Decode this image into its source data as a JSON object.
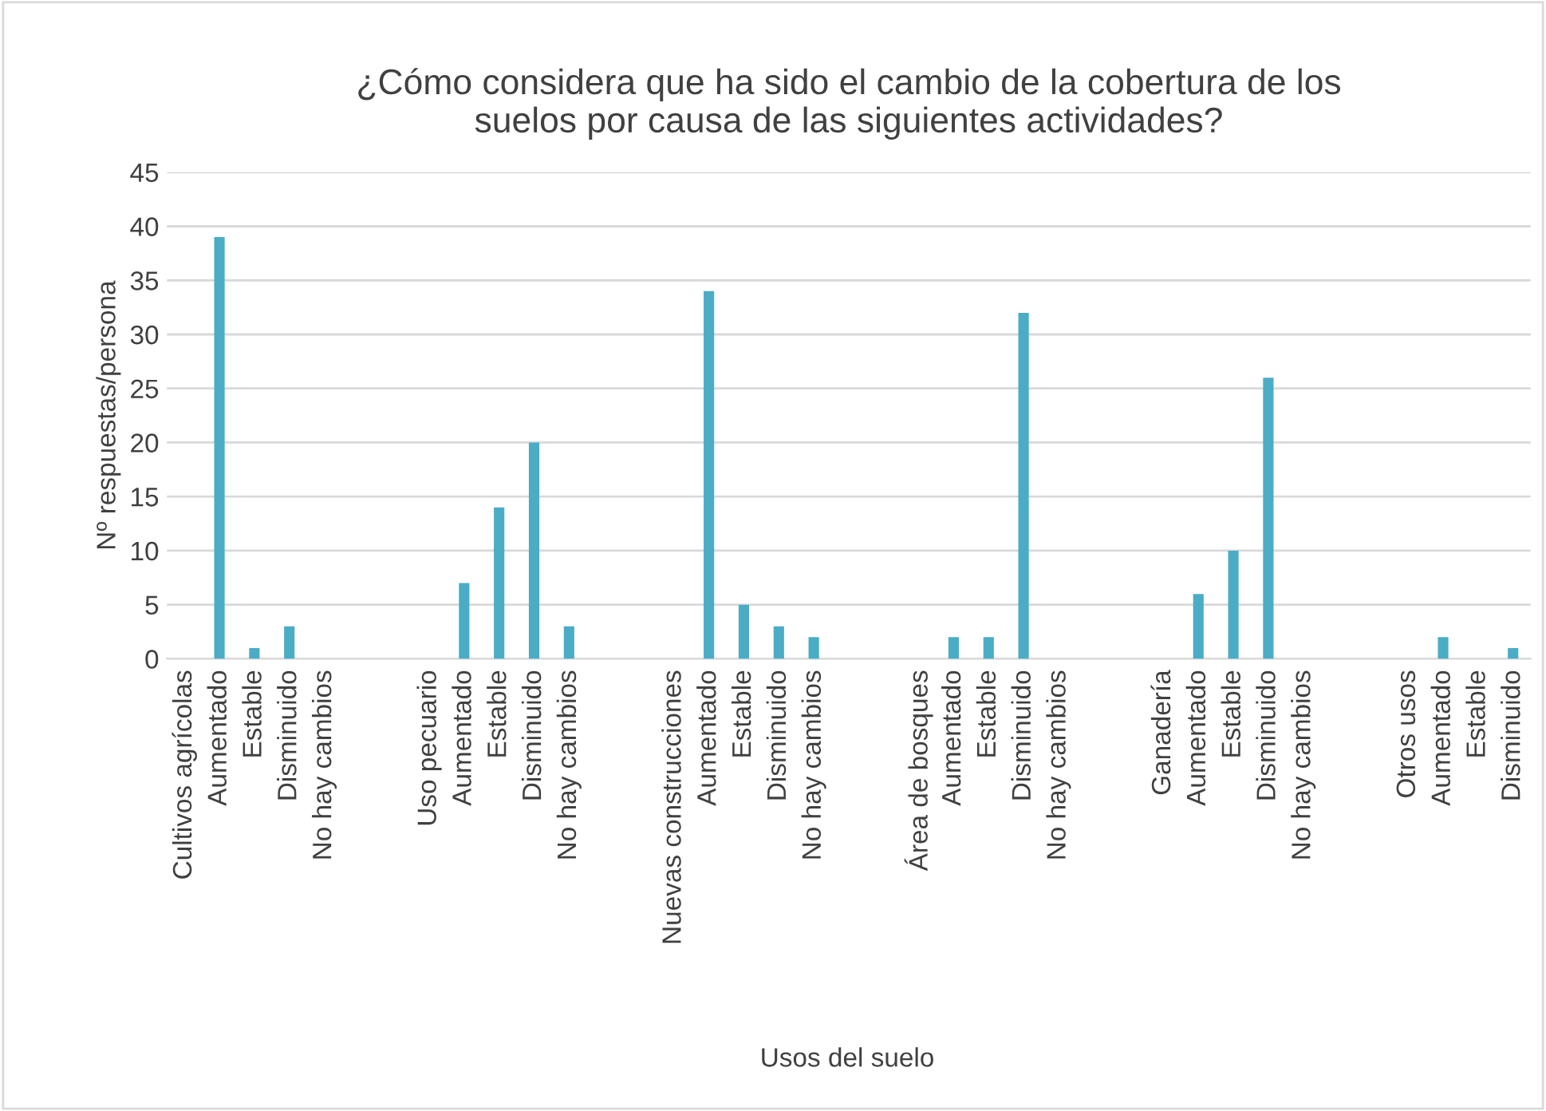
{
  "chart_data": {
    "type": "bar",
    "title": "¿Cómo considera que ha sido el cambio de la cobertura de los\nsuelos por causa de las siguientes actividades?",
    "xlabel": "Usos del suelo",
    "ylabel": "Nº respuestas/persona",
    "categories": [
      "Cultivos agrícolas",
      "Aumentado",
      "Estable",
      "Disminuido",
      "No hay cambios",
      null,
      null,
      "Uso pecuario",
      "Aumentado",
      "Estable",
      "Disminuido",
      "No hay cambios",
      null,
      null,
      "Nuevas construcciones",
      "Aumentado",
      "Estable",
      "Disminuido",
      "No hay cambios",
      null,
      null,
      "Área de bosques",
      "Aumentado",
      "Estable",
      "Disminuido",
      "No hay cambios",
      null,
      null,
      "Ganadería",
      "Aumentado",
      "Estable",
      "Disminuido",
      "No hay cambios",
      null,
      null,
      "Otros usos",
      "Aumentado",
      "Estable",
      "Disminuido"
    ],
    "values": [
      null,
      39,
      1,
      3,
      null,
      null,
      null,
      null,
      7,
      14,
      20,
      3,
      null,
      null,
      null,
      34,
      5,
      3,
      2,
      null,
      null,
      null,
      2,
      2,
      32,
      null,
      null,
      null,
      null,
      6,
      10,
      26,
      null,
      null,
      null,
      null,
      2,
      null,
      1
    ],
    "color": "#4bacc6",
    "ylim": [
      0,
      45
    ],
    "yticks": [
      0,
      5,
      10,
      15,
      20,
      25,
      30,
      35,
      40,
      45
    ],
    "grid": "y",
    "legend": false
  }
}
